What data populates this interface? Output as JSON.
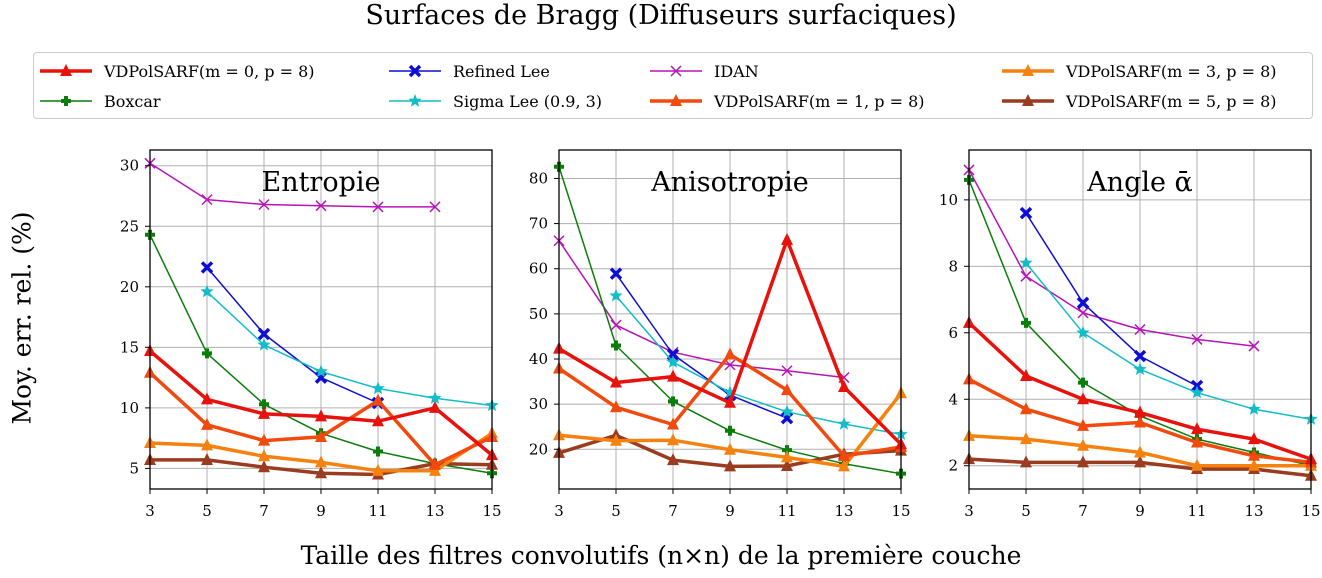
{
  "suptitle": "Surfaces de Bragg (Diffuseurs surfaciques)",
  "ylabel": "Moy. err. rel. (%)",
  "xlabel": "Taille des filtres convolutifs (n×n) de la première couche",
  "legend": [
    {
      "name": "VDPolSARF(m = 0, p = 8)",
      "color": "#e8120c",
      "marker": "triangle",
      "width": 3.5
    },
    {
      "name": "Refined Lee",
      "color": "#0d0dd6",
      "marker": "x-bold",
      "width": 1.5
    },
    {
      "name": "IDAN",
      "color": "#b714b7",
      "marker": "x",
      "width": 1.5
    },
    {
      "name": "VDPolSARF(m = 3, p = 8)",
      "color": "#f5820f",
      "marker": "triangle",
      "width": 3.5
    },
    {
      "name": "Boxcar",
      "color": "#0a7d0a",
      "marker": "plus",
      "width": 1.5
    },
    {
      "name": "Sigma Lee (0.9, 3)",
      "color": "#12bdc7",
      "marker": "star",
      "width": 1.5
    },
    {
      "name": "VDPolSARF(m = 1, p = 8)",
      "color": "#f2490c",
      "marker": "triangle",
      "width": 3.5
    },
    {
      "name": "VDPolSARF(m = 5, p = 8)",
      "color": "#993c1f",
      "marker": "triangle",
      "width": 3.5
    }
  ],
  "chart_data": [
    {
      "type": "line",
      "title": "Entropie",
      "x": [
        3,
        5,
        7,
        9,
        11,
        13,
        15
      ],
      "xlim": [
        3,
        15
      ],
      "ylim": [
        3.3,
        31.3
      ],
      "yticks": [
        5,
        10,
        15,
        20,
        25,
        30
      ],
      "series": [
        {
          "name": "IDAN",
          "values": [
            30.2,
            27.2,
            26.8,
            26.7,
            26.6,
            26.6,
            null
          ]
        },
        {
          "name": "Refined Lee",
          "values": [
            null,
            21.6,
            16.1,
            12.5,
            10.4,
            null,
            null
          ]
        },
        {
          "name": "Sigma Lee (0.9, 3)",
          "values": [
            null,
            19.6,
            15.2,
            13.0,
            11.6,
            10.8,
            10.2
          ]
        },
        {
          "name": "Boxcar",
          "values": [
            24.3,
            14.5,
            10.3,
            7.9,
            6.4,
            5.4,
            4.6
          ]
        },
        {
          "name": "VDPolSARF(m = 0, p = 8)",
          "values": [
            14.7,
            10.7,
            9.5,
            9.3,
            8.9,
            10.0,
            6.1
          ]
        },
        {
          "name": "VDPolSARF(m = 1, p = 8)",
          "values": [
            12.9,
            8.6,
            7.3,
            7.6,
            10.6,
            5.3,
            7.6
          ]
        },
        {
          "name": "VDPolSARF(m = 3, p = 8)",
          "values": [
            7.1,
            6.9,
            6.0,
            5.5,
            4.8,
            4.8,
            7.9
          ]
        },
        {
          "name": "VDPolSARF(m = 5, p = 8)",
          "values": [
            5.7,
            5.7,
            5.1,
            4.6,
            4.5,
            5.4,
            5.3
          ]
        }
      ]
    },
    {
      "type": "line",
      "title": "Anisotropie",
      "x": [
        3,
        5,
        7,
        9,
        11,
        13,
        15
      ],
      "xlim": [
        3,
        15
      ],
      "ylim": [
        11.2,
        86.3
      ],
      "yticks": [
        20,
        30,
        40,
        50,
        60,
        70,
        80
      ],
      "series": [
        {
          "name": "IDAN",
          "values": [
            66.2,
            47.5,
            41.5,
            38.7,
            37.4,
            35.9,
            null
          ]
        },
        {
          "name": "Refined Lee",
          "values": [
            null,
            58.9,
            41.0,
            32.0,
            26.9,
            null,
            null
          ]
        },
        {
          "name": "Sigma Lee (0.9, 3)",
          "values": [
            null,
            54.0,
            39.3,
            32.6,
            28.3,
            25.6,
            23.3
          ]
        },
        {
          "name": "Boxcar",
          "values": [
            82.6,
            43.0,
            30.6,
            24.1,
            19.8,
            16.8,
            14.6
          ]
        },
        {
          "name": "VDPolSARF(m = 0, p = 8)",
          "values": [
            42.3,
            34.8,
            36.1,
            30.3,
            66.4,
            33.8,
            21.1
          ]
        },
        {
          "name": "VDPolSARF(m = 1, p = 8)",
          "values": [
            37.9,
            29.3,
            25.5,
            41.0,
            33.1,
            18.5,
            20.5
          ]
        },
        {
          "name": "VDPolSARF(m = 3, p = 8)",
          "values": [
            23.1,
            21.9,
            22.0,
            19.9,
            18.2,
            16.2,
            32.4
          ]
        },
        {
          "name": "VDPolSARF(m = 5, p = 8)",
          "values": [
            19.2,
            23.1,
            17.6,
            16.2,
            16.3,
            18.9,
            19.7
          ]
        }
      ]
    },
    {
      "type": "line",
      "title": "Angle ᾱ",
      "x": [
        3,
        5,
        7,
        9,
        11,
        13,
        15
      ],
      "xlim": [
        3,
        15
      ],
      "ylim": [
        1.3,
        11.5
      ],
      "yticks": [
        2,
        4,
        6,
        8,
        10
      ],
      "series": [
        {
          "name": "IDAN",
          "values": [
            10.9,
            7.7,
            6.6,
            6.1,
            5.8,
            5.6,
            null
          ]
        },
        {
          "name": "Refined Lee",
          "values": [
            null,
            9.6,
            6.9,
            5.3,
            4.4,
            null,
            null
          ]
        },
        {
          "name": "Sigma Lee (0.9, 3)",
          "values": [
            null,
            8.1,
            6.0,
            4.9,
            4.2,
            3.7,
            3.4
          ]
        },
        {
          "name": "Boxcar",
          "values": [
            10.6,
            6.3,
            4.5,
            3.5,
            2.8,
            2.4,
            2.0
          ]
        },
        {
          "name": "VDPolSARF(m = 0, p = 8)",
          "values": [
            6.3,
            4.7,
            4.0,
            3.6,
            3.1,
            2.8,
            2.2
          ]
        },
        {
          "name": "VDPolSARF(m = 1, p = 8)",
          "values": [
            4.6,
            3.7,
            3.2,
            3.3,
            2.7,
            2.3,
            2.1
          ]
        },
        {
          "name": "VDPolSARF(m = 3, p = 8)",
          "values": [
            2.9,
            2.8,
            2.6,
            2.4,
            2.0,
            2.0,
            2.0
          ]
        },
        {
          "name": "VDPolSARF(m = 5, p = 8)",
          "values": [
            2.2,
            2.1,
            2.1,
            2.1,
            1.9,
            1.9,
            1.7
          ]
        }
      ]
    }
  ]
}
